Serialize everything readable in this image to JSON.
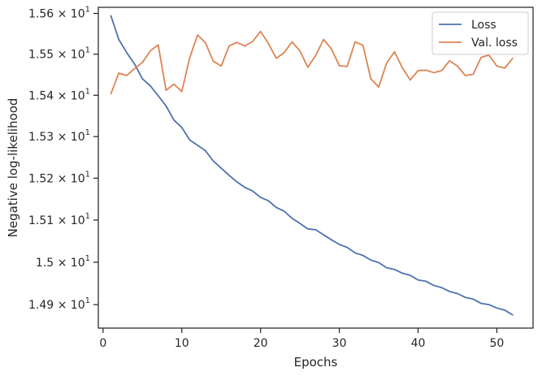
{
  "chart_data": {
    "type": "line",
    "xlabel": "Epochs",
    "ylabel": "Negative log-likelihood",
    "xlim": [
      -0.6,
      54.6
    ],
    "ylim": [
      14.845,
      15.615
    ],
    "x_ticks": [
      0,
      10,
      20,
      30,
      40,
      50
    ],
    "x_tick_labels": [
      "0",
      "10",
      "20",
      "30",
      "40",
      "50"
    ],
    "y_ticks": [
      14.9,
      15.0,
      15.1,
      15.2,
      15.3,
      15.4,
      15.5,
      15.6
    ],
    "y_tick_labels": [
      {
        "mant": "1.49",
        "base": "10",
        "exp": "1"
      },
      {
        "mant": "1.5",
        "base": "10",
        "exp": "1"
      },
      {
        "mant": "1.51",
        "base": "10",
        "exp": "1"
      },
      {
        "mant": "1.52",
        "base": "10",
        "exp": "1"
      },
      {
        "mant": "1.53",
        "base": "10",
        "exp": "1"
      },
      {
        "mant": "1.54",
        "base": "10",
        "exp": "1"
      },
      {
        "mant": "1.55",
        "base": "10",
        "exp": "1"
      },
      {
        "mant": "1.56",
        "base": "10",
        "exp": "1"
      }
    ],
    "y_scale": "log",
    "grid": false,
    "legend_position": "top-right",
    "x": [
      1,
      2,
      3,
      4,
      5,
      6,
      7,
      8,
      9,
      10,
      11,
      12,
      13,
      14,
      15,
      16,
      17,
      18,
      19,
      20,
      21,
      22,
      23,
      24,
      25,
      26,
      27,
      28,
      29,
      30,
      31,
      32,
      33,
      34,
      35,
      36,
      37,
      38,
      39,
      40,
      41,
      42,
      43,
      44,
      45,
      46,
      47,
      48,
      49,
      50,
      51,
      52
    ],
    "series": [
      {
        "name": "Loss",
        "color": "#4c72b0",
        "values": [
          15.594,
          15.536,
          15.504,
          15.476,
          15.44,
          15.423,
          15.399,
          15.374,
          15.34,
          15.322,
          15.292,
          15.279,
          15.266,
          15.241,
          15.224,
          15.207,
          15.191,
          15.178,
          15.169,
          15.154,
          15.146,
          15.13,
          15.121,
          15.104,
          15.092,
          15.079,
          15.077,
          15.065,
          15.053,
          15.042,
          15.035,
          15.022,
          15.016,
          15.005,
          14.999,
          14.987,
          14.983,
          14.974,
          14.969,
          14.958,
          14.955,
          14.945,
          14.94,
          14.931,
          14.926,
          14.917,
          14.913,
          14.903,
          14.9,
          14.892,
          14.887,
          14.876
        ]
      },
      {
        "name": "Val. loss",
        "color": "#dd8452",
        "values": [
          15.404,
          15.454,
          15.448,
          15.465,
          15.48,
          15.508,
          15.523,
          15.412,
          15.427,
          15.409,
          15.491,
          15.547,
          15.528,
          15.483,
          15.471,
          15.52,
          15.529,
          15.52,
          15.531,
          15.556,
          15.526,
          15.49,
          15.504,
          15.53,
          15.508,
          15.468,
          15.497,
          15.536,
          15.513,
          15.472,
          15.47,
          15.53,
          15.522,
          15.44,
          15.42,
          15.478,
          15.506,
          15.467,
          15.437,
          15.46,
          15.461,
          15.455,
          15.46,
          15.484,
          15.471,
          15.448,
          15.451,
          15.492,
          15.498,
          15.471,
          15.466,
          15.49
        ]
      }
    ]
  }
}
